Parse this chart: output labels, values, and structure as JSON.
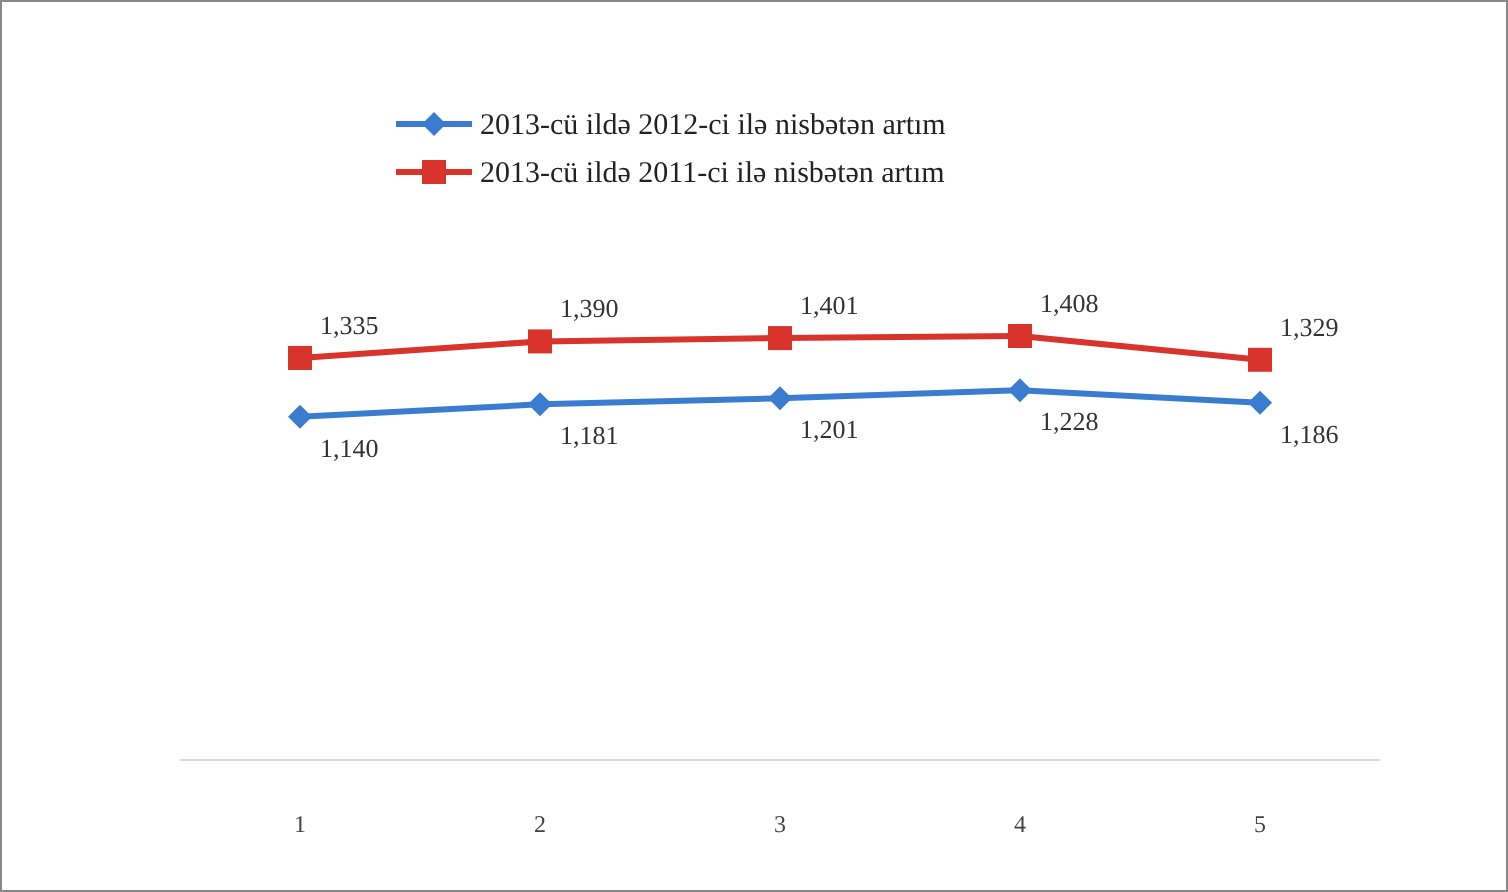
{
  "chart_data": {
    "type": "line",
    "categories": [
      "1",
      "2",
      "3",
      "4",
      "5"
    ],
    "series": [
      {
        "name": "2013-cü ildə 2012-ci ilə nisbətən artım",
        "color": "#3a7dd0",
        "marker": "diamond",
        "values": [
          1140,
          1181,
          1201,
          1228,
          1186
        ],
        "value_labels": [
          "1,140",
          "1,181",
          "1,201",
          "1,228",
          "1,186"
        ]
      },
      {
        "name": "2013-cü ildə 2011-ci ilə nisbətən artım",
        "color": "#d9342b",
        "marker": "square",
        "values": [
          1335,
          1390,
          1401,
          1408,
          1329
        ],
        "value_labels": [
          "1,335",
          "1,390",
          "1,401",
          "1,408",
          "1,329"
        ]
      }
    ],
    "legend": "top"
  }
}
